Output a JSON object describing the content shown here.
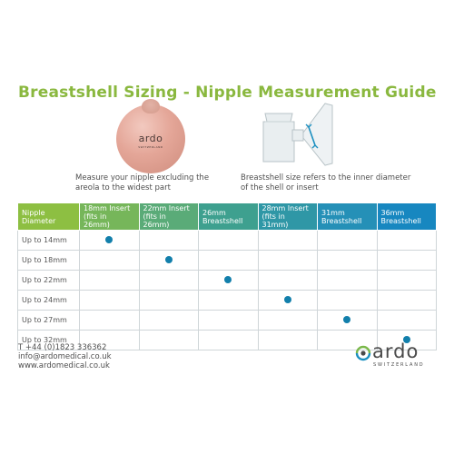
{
  "title": "Breastshell Sizing - Nipple Measurement Guide",
  "model_brand": "ardo",
  "model_brand_sub": "SWITZERLAND",
  "caption_left": "Measure your nipple excluding the areola to the widest part",
  "caption_right": "Breastshell size refers to the inner diameter of the shell or insert",
  "table": {
    "headers": [
      "Nipple Diameter",
      "18mm Insert (fits in 26mm)",
      "22mm Insert (fits in 26mm)",
      "26mm Breastshell",
      "28mm Insert (fits in 31mm)",
      "31mm Breastshell",
      "36mm Breastshell"
    ],
    "header_colors": [
      "#8dbf42",
      "#76b65a",
      "#5aab78",
      "#3ea08f",
      "#2f97a6",
      "#2590b7",
      "#1787c0"
    ],
    "rows": [
      {
        "label": "Up to 14mm",
        "match": 1
      },
      {
        "label": "Up to 18mm",
        "match": 2
      },
      {
        "label": "Up to 22mm",
        "match": 3
      },
      {
        "label": "Up to 24mm",
        "match": 4
      },
      {
        "label": "Up to 27mm",
        "match": 5
      },
      {
        "label": "Up to 32mm",
        "match": 6
      }
    ],
    "dot_color": "#127fab"
  },
  "contact": {
    "phone": "T +44 (0)1823 336362",
    "email": "info@ardomedical.co.uk",
    "website": "www.ardomedical.co.uk"
  },
  "logo": {
    "word": "ardo",
    "sub": "SWITZERLAND"
  },
  "icons": [
    "breast-model-icon",
    "breastshell-icon",
    "ardo-logo-icon"
  ]
}
